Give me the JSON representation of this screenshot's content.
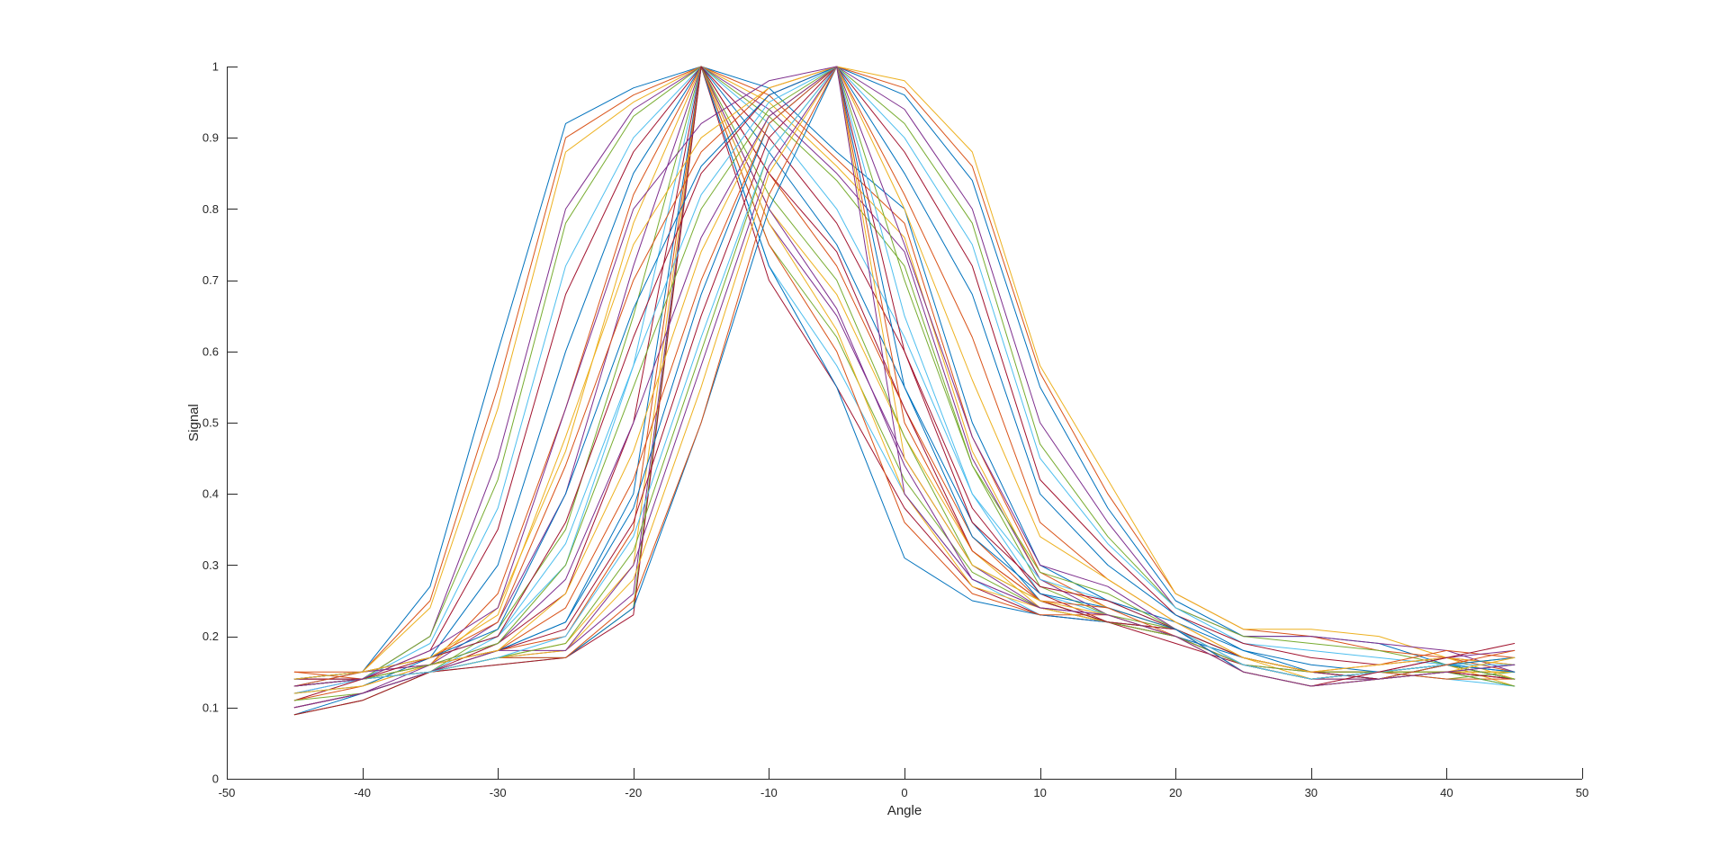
{
  "chart_data": {
    "type": "line",
    "title": "",
    "xlabel": "Angle",
    "ylabel": "Signal",
    "xlim": [
      -50,
      50
    ],
    "ylim": [
      0,
      1
    ],
    "xticks": [
      -50,
      -40,
      -30,
      -20,
      -10,
      0,
      10,
      20,
      30,
      40,
      50
    ],
    "xtick_labels": [
      "-50",
      "-40",
      "-30",
      "-20",
      "-10",
      "0",
      "10",
      "20",
      "30",
      "40",
      "50"
    ],
    "yticks": [
      0,
      0.1,
      0.2,
      0.3,
      0.4,
      0.5,
      0.6,
      0.7,
      0.8,
      0.9,
      1
    ],
    "ytick_labels": [
      "0",
      "0.1",
      "0.2",
      "0.3",
      "0.4",
      "0.5",
      "0.6",
      "0.7",
      "0.8",
      "0.9",
      "1"
    ],
    "grid": false,
    "legend": "none",
    "x": [
      -45,
      -40,
      -35,
      -30,
      -25,
      -20,
      -15,
      -10,
      -5,
      0,
      5,
      10,
      15,
      20,
      25,
      30,
      35,
      40,
      45
    ],
    "series": [
      {
        "color": "#0072BD",
        "values": [
          0.13,
          0.15,
          0.27,
          0.6,
          0.92,
          0.97,
          1.0,
          0.97,
          0.88,
          0.8,
          0.5,
          0.3,
          0.25,
          0.22,
          0.18,
          0.15,
          0.15,
          0.16,
          0.14
        ]
      },
      {
        "color": "#D95319",
        "values": [
          0.15,
          0.15,
          0.25,
          0.55,
          0.9,
          0.96,
          1.0,
          0.96,
          0.87,
          0.78,
          0.48,
          0.29,
          0.24,
          0.21,
          0.17,
          0.15,
          0.14,
          0.15,
          0.15
        ]
      },
      {
        "color": "#EDB120",
        "values": [
          0.14,
          0.15,
          0.24,
          0.52,
          0.88,
          0.95,
          1.0,
          0.95,
          0.86,
          0.76,
          0.46,
          0.28,
          0.24,
          0.21,
          0.17,
          0.14,
          0.15,
          0.16,
          0.13
        ]
      },
      {
        "color": "#7E2F8E",
        "values": [
          0.12,
          0.14,
          0.2,
          0.45,
          0.8,
          0.94,
          1.0,
          0.94,
          0.85,
          0.74,
          0.45,
          0.28,
          0.23,
          0.2,
          0.16,
          0.14,
          0.14,
          0.15,
          0.14
        ]
      },
      {
        "color": "#77AC30",
        "values": [
          0.13,
          0.14,
          0.2,
          0.42,
          0.78,
          0.93,
          1.0,
          0.93,
          0.84,
          0.72,
          0.44,
          0.27,
          0.23,
          0.21,
          0.17,
          0.15,
          0.15,
          0.14,
          0.15
        ]
      },
      {
        "color": "#4DBEEE",
        "values": [
          0.12,
          0.14,
          0.19,
          0.38,
          0.72,
          0.9,
          1.0,
          0.92,
          0.8,
          0.62,
          0.4,
          0.26,
          0.23,
          0.2,
          0.16,
          0.14,
          0.15,
          0.14,
          0.13
        ]
      },
      {
        "color": "#A2142F",
        "values": [
          0.11,
          0.14,
          0.18,
          0.35,
          0.68,
          0.88,
          1.0,
          0.9,
          0.78,
          0.6,
          0.38,
          0.26,
          0.22,
          0.19,
          0.16,
          0.14,
          0.15,
          0.15,
          0.14
        ]
      },
      {
        "color": "#0072BD",
        "values": [
          0.12,
          0.13,
          0.17,
          0.3,
          0.6,
          0.85,
          1.0,
          0.88,
          0.75,
          0.55,
          0.36,
          0.25,
          0.22,
          0.2,
          0.17,
          0.15,
          0.14,
          0.16,
          0.15
        ]
      },
      {
        "color": "#D95319",
        "values": [
          0.11,
          0.13,
          0.16,
          0.26,
          0.52,
          0.82,
          1.0,
          0.85,
          0.72,
          0.52,
          0.34,
          0.25,
          0.22,
          0.21,
          0.17,
          0.15,
          0.15,
          0.15,
          0.16
        ]
      },
      {
        "color": "#EDB120",
        "values": [
          0.12,
          0.13,
          0.16,
          0.24,
          0.46,
          0.78,
          1.0,
          0.8,
          0.68,
          0.48,
          0.32,
          0.24,
          0.22,
          0.2,
          0.16,
          0.14,
          0.14,
          0.15,
          0.15
        ]
      },
      {
        "color": "#7E2F8E",
        "values": [
          0.1,
          0.12,
          0.16,
          0.22,
          0.4,
          0.72,
          1.0,
          0.78,
          0.65,
          0.45,
          0.3,
          0.24,
          0.22,
          0.21,
          0.17,
          0.15,
          0.15,
          0.16,
          0.14
        ]
      },
      {
        "color": "#77AC30",
        "values": [
          0.11,
          0.12,
          0.15,
          0.21,
          0.35,
          0.65,
          1.0,
          0.75,
          0.62,
          0.42,
          0.29,
          0.24,
          0.22,
          0.2,
          0.16,
          0.14,
          0.15,
          0.15,
          0.15
        ]
      },
      {
        "color": "#4DBEEE",
        "values": [
          0.1,
          0.12,
          0.15,
          0.2,
          0.3,
          0.58,
          1.0,
          0.72,
          0.58,
          0.4,
          0.28,
          0.23,
          0.22,
          0.21,
          0.17,
          0.15,
          0.14,
          0.15,
          0.16
        ]
      },
      {
        "color": "#A2142F",
        "values": [
          0.1,
          0.12,
          0.15,
          0.19,
          0.26,
          0.5,
          1.0,
          0.7,
          0.55,
          0.38,
          0.27,
          0.23,
          0.22,
          0.2,
          0.16,
          0.15,
          0.15,
          0.16,
          0.14
        ]
      },
      {
        "color": "#0072BD",
        "values": [
          0.09,
          0.12,
          0.15,
          0.18,
          0.22,
          0.4,
          1.0,
          0.72,
          0.55,
          0.31,
          0.25,
          0.23,
          0.22,
          0.21,
          0.17,
          0.15,
          0.14,
          0.15,
          0.13
        ]
      },
      {
        "color": "#D95319",
        "values": [
          0.1,
          0.12,
          0.15,
          0.18,
          0.2,
          0.35,
          1.0,
          0.75,
          0.6,
          0.36,
          0.26,
          0.23,
          0.23,
          0.2,
          0.16,
          0.14,
          0.15,
          0.14,
          0.14
        ]
      },
      {
        "color": "#EDB120",
        "values": [
          0.09,
          0.11,
          0.15,
          0.17,
          0.19,
          0.3,
          1.0,
          0.78,
          0.63,
          0.4,
          0.27,
          0.24,
          0.22,
          0.21,
          0.17,
          0.15,
          0.15,
          0.15,
          0.15
        ]
      },
      {
        "color": "#7E2F8E",
        "values": [
          0.1,
          0.12,
          0.15,
          0.17,
          0.18,
          0.26,
          1.0,
          0.8,
          0.66,
          0.44,
          0.28,
          0.24,
          0.23,
          0.2,
          0.16,
          0.14,
          0.14,
          0.16,
          0.14
        ]
      },
      {
        "color": "#77AC30",
        "values": [
          0.09,
          0.11,
          0.15,
          0.16,
          0.17,
          0.24,
          1.0,
          0.82,
          0.7,
          0.48,
          0.3,
          0.25,
          0.22,
          0.2,
          0.16,
          0.15,
          0.15,
          0.15,
          0.13
        ]
      },
      {
        "color": "#A2142F",
        "values": [
          0.09,
          0.11,
          0.15,
          0.16,
          0.17,
          0.23,
          1.0,
          0.85,
          0.74,
          0.52,
          0.32,
          0.25,
          0.22,
          0.21,
          0.17,
          0.15,
          0.14,
          0.15,
          0.14
        ]
      },
      {
        "color": "#0072BD",
        "values": [
          0.14,
          0.14,
          0.15,
          0.17,
          0.17,
          0.24,
          0.5,
          0.8,
          1.0,
          0.96,
          0.84,
          0.55,
          0.38,
          0.25,
          0.2,
          0.2,
          0.19,
          0.16,
          0.14
        ]
      },
      {
        "color": "#D95319",
        "values": [
          0.15,
          0.14,
          0.15,
          0.17,
          0.17,
          0.25,
          0.5,
          0.82,
          1.0,
          0.97,
          0.86,
          0.57,
          0.4,
          0.26,
          0.21,
          0.2,
          0.18,
          0.17,
          0.15
        ]
      },
      {
        "color": "#EDB120",
        "values": [
          0.14,
          0.14,
          0.15,
          0.17,
          0.18,
          0.28,
          0.55,
          0.85,
          1.0,
          0.98,
          0.88,
          0.58,
          0.42,
          0.26,
          0.21,
          0.21,
          0.2,
          0.17,
          0.14
        ]
      },
      {
        "color": "#7E2F8E",
        "values": [
          0.14,
          0.14,
          0.15,
          0.18,
          0.18,
          0.3,
          0.58,
          0.86,
          1.0,
          0.94,
          0.8,
          0.5,
          0.36,
          0.24,
          0.2,
          0.2,
          0.19,
          0.18,
          0.15
        ]
      },
      {
        "color": "#77AC30",
        "values": [
          0.13,
          0.14,
          0.15,
          0.17,
          0.19,
          0.32,
          0.6,
          0.88,
          1.0,
          0.92,
          0.78,
          0.47,
          0.34,
          0.24,
          0.2,
          0.19,
          0.18,
          0.16,
          0.14
        ]
      },
      {
        "color": "#4DBEEE",
        "values": [
          0.13,
          0.14,
          0.15,
          0.17,
          0.2,
          0.34,
          0.62,
          0.88,
          1.0,
          0.9,
          0.75,
          0.45,
          0.33,
          0.24,
          0.19,
          0.18,
          0.17,
          0.16,
          0.15
        ]
      },
      {
        "color": "#A2142F",
        "values": [
          0.14,
          0.14,
          0.16,
          0.18,
          0.21,
          0.36,
          0.65,
          0.9,
          1.0,
          0.88,
          0.72,
          0.42,
          0.32,
          0.23,
          0.19,
          0.17,
          0.16,
          0.17,
          0.16
        ]
      },
      {
        "color": "#0072BD",
        "values": [
          0.13,
          0.14,
          0.16,
          0.18,
          0.22,
          0.38,
          0.68,
          0.92,
          1.0,
          0.85,
          0.68,
          0.4,
          0.3,
          0.23,
          0.18,
          0.16,
          0.15,
          0.16,
          0.15
        ]
      },
      {
        "color": "#D95319",
        "values": [
          0.14,
          0.15,
          0.16,
          0.18,
          0.24,
          0.42,
          0.7,
          0.92,
          1.0,
          0.82,
          0.62,
          0.36,
          0.28,
          0.22,
          0.17,
          0.15,
          0.16,
          0.18,
          0.17
        ]
      },
      {
        "color": "#EDB120",
        "values": [
          0.13,
          0.14,
          0.16,
          0.18,
          0.26,
          0.46,
          0.74,
          0.93,
          1.0,
          0.8,
          0.56,
          0.34,
          0.28,
          0.22,
          0.17,
          0.15,
          0.16,
          0.17,
          0.16
        ]
      },
      {
        "color": "#7E2F8E",
        "values": [
          0.14,
          0.15,
          0.16,
          0.19,
          0.28,
          0.5,
          0.76,
          0.93,
          1.0,
          0.75,
          0.48,
          0.3,
          0.27,
          0.21,
          0.16,
          0.14,
          0.15,
          0.17,
          0.18
        ]
      },
      {
        "color": "#77AC30",
        "values": [
          0.13,
          0.14,
          0.16,
          0.19,
          0.3,
          0.55,
          0.8,
          0.94,
          1.0,
          0.7,
          0.44,
          0.29,
          0.26,
          0.21,
          0.16,
          0.14,
          0.15,
          0.16,
          0.17
        ]
      },
      {
        "color": "#4DBEEE",
        "values": [
          0.14,
          0.15,
          0.17,
          0.2,
          0.33,
          0.58,
          0.82,
          0.95,
          1.0,
          0.65,
          0.4,
          0.28,
          0.25,
          0.21,
          0.16,
          0.14,
          0.15,
          0.16,
          0.16
        ]
      },
      {
        "color": "#A2142F",
        "values": [
          0.13,
          0.14,
          0.17,
          0.2,
          0.36,
          0.62,
          0.85,
          0.96,
          1.0,
          0.6,
          0.36,
          0.27,
          0.25,
          0.21,
          0.15,
          0.13,
          0.15,
          0.17,
          0.19
        ]
      },
      {
        "color": "#0072BD",
        "values": [
          0.14,
          0.15,
          0.17,
          0.21,
          0.4,
          0.66,
          0.86,
          0.96,
          1.0,
          0.55,
          0.34,
          0.26,
          0.24,
          0.21,
          0.15,
          0.13,
          0.14,
          0.16,
          0.17
        ]
      },
      {
        "color": "#D95319",
        "values": [
          0.13,
          0.15,
          0.17,
          0.22,
          0.44,
          0.7,
          0.88,
          0.97,
          1.0,
          0.5,
          0.32,
          0.25,
          0.24,
          0.2,
          0.15,
          0.13,
          0.14,
          0.16,
          0.18
        ]
      },
      {
        "color": "#EDB120",
        "values": [
          0.14,
          0.15,
          0.17,
          0.23,
          0.48,
          0.75,
          0.9,
          0.97,
          1.0,
          0.45,
          0.3,
          0.25,
          0.23,
          0.2,
          0.15,
          0.13,
          0.14,
          0.15,
          0.17
        ]
      },
      {
        "color": "#7E2F8E",
        "values": [
          0.13,
          0.14,
          0.18,
          0.24,
          0.52,
          0.8,
          0.92,
          0.98,
          1.0,
          0.4,
          0.28,
          0.24,
          0.23,
          0.2,
          0.15,
          0.13,
          0.14,
          0.15,
          0.16
        ]
      }
    ]
  }
}
